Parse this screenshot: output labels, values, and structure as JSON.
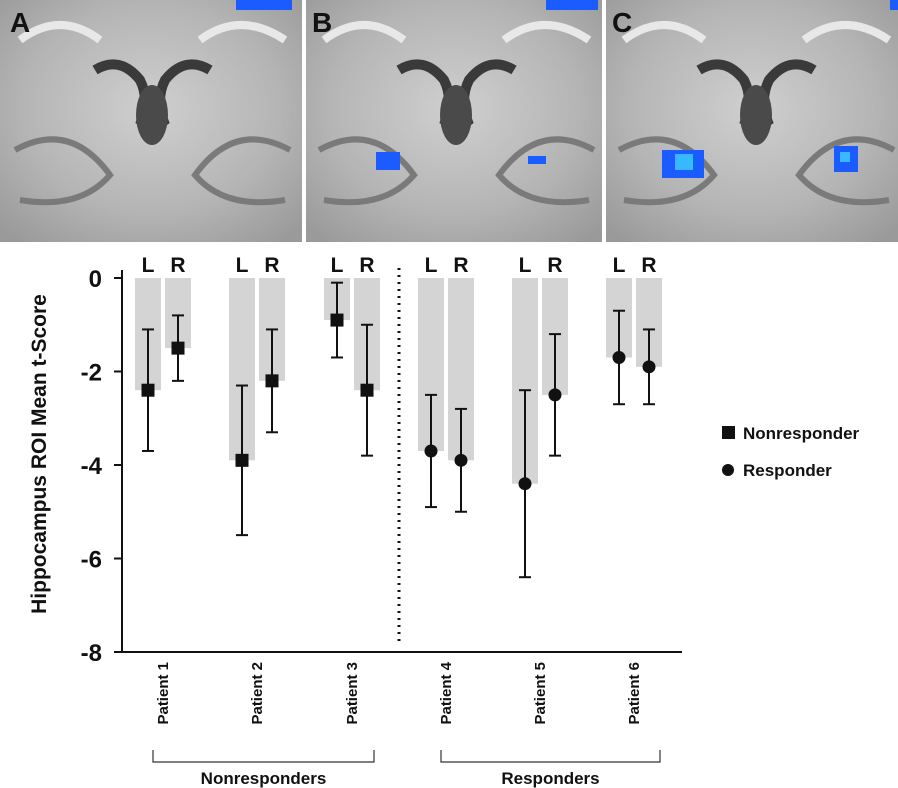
{
  "panels": [
    {
      "letter": "A"
    },
    {
      "letter": "B"
    },
    {
      "letter": "C"
    }
  ],
  "chart_data": {
    "type": "bar",
    "ylabel": "Hippocampus ROI Mean t-Score",
    "ylim": [
      -8,
      0
    ],
    "yticks": [
      0,
      -2,
      -4,
      -6,
      -8
    ],
    "patients": [
      "Patient 1",
      "Patient 2",
      "Patient 3",
      "Patient 4",
      "Patient 5",
      "Patient 6"
    ],
    "hemispheres": [
      "L",
      "R"
    ],
    "series": [
      {
        "name": "Nonresponder",
        "marker": "square",
        "points": [
          {
            "patient": "Patient 1",
            "hemi": "L",
            "value": -2.4,
            "low": -3.7,
            "high": -1.1
          },
          {
            "patient": "Patient 1",
            "hemi": "R",
            "value": -1.5,
            "low": -2.2,
            "high": -0.8
          },
          {
            "patient": "Patient 2",
            "hemi": "L",
            "value": -3.9,
            "low": -5.5,
            "high": -2.3
          },
          {
            "patient": "Patient 2",
            "hemi": "R",
            "value": -2.2,
            "low": -3.3,
            "high": -1.1
          },
          {
            "patient": "Patient 3",
            "hemi": "L",
            "value": -0.9,
            "low": -1.7,
            "high": -0.1
          },
          {
            "patient": "Patient 3",
            "hemi": "R",
            "value": -2.4,
            "low": -3.8,
            "high": -1.0
          }
        ]
      },
      {
        "name": "Responder",
        "marker": "circle",
        "points": [
          {
            "patient": "Patient 4",
            "hemi": "L",
            "value": -3.7,
            "low": -4.9,
            "high": -2.5
          },
          {
            "patient": "Patient 4",
            "hemi": "R",
            "value": -3.9,
            "low": -5.0,
            "high": -2.8
          },
          {
            "patient": "Patient 5",
            "hemi": "L",
            "value": -4.4,
            "low": -6.4,
            "high": -2.4
          },
          {
            "patient": "Patient 5",
            "hemi": "R",
            "value": -2.5,
            "low": -3.8,
            "high": -1.2
          },
          {
            "patient": "Patient 6",
            "hemi": "L",
            "value": -1.7,
            "low": -2.7,
            "high": -0.7
          },
          {
            "patient": "Patient 6",
            "hemi": "R",
            "value": -1.9,
            "low": -2.7,
            "high": -1.1
          }
        ]
      }
    ],
    "groups": [
      {
        "label": "Nonresponders",
        "patients": [
          "Patient 1",
          "Patient 2",
          "Patient 3"
        ]
      },
      {
        "label": "Responders",
        "patients": [
          "Patient 4",
          "Patient 5",
          "Patient 6"
        ]
      }
    ],
    "legend": {
      "position": "right",
      "entries": [
        "Nonresponder",
        "Responder"
      ]
    },
    "colors": {
      "bar": "#d4d4d4",
      "marker": "#111111",
      "activation": "#1a5cff",
      "activation_light": "#38b8ff"
    }
  }
}
